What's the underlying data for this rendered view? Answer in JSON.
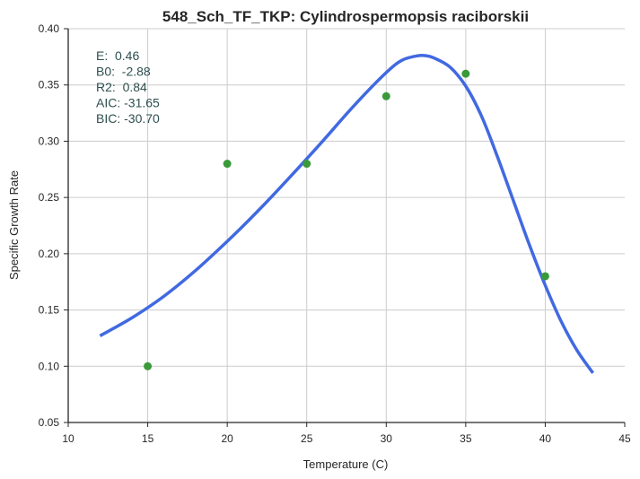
{
  "chart_data": {
    "type": "scatter",
    "title": "548_Sch_TF_TKP: Cylindrospermopsis raciborskii",
    "xlabel": "Temperature (C)",
    "ylabel": "Specific Growth Rate",
    "xlim": [
      10,
      45
    ],
    "ylim": [
      0.05,
      0.4
    ],
    "x_ticks": [
      "10",
      "15",
      "20",
      "25",
      "30",
      "35",
      "40",
      "45"
    ],
    "y_ticks": [
      "0.05",
      "0.10",
      "0.15",
      "0.20",
      "0.25",
      "0.30",
      "0.35",
      "0.40"
    ],
    "grid": true,
    "points": {
      "x": [
        15,
        20,
        25,
        30,
        35,
        40
      ],
      "y": [
        0.1,
        0.28,
        0.28,
        0.34,
        0.36,
        0.18
      ],
      "color": "#3a9a3a"
    },
    "fit_curve": {
      "x": [
        12,
        14,
        16,
        18,
        20,
        22,
        24,
        26,
        28,
        30,
        31,
        32,
        32.5,
        33,
        34,
        35,
        36,
        37,
        38,
        39,
        40,
        41,
        42,
        43
      ],
      "y": [
        0.127,
        0.143,
        0.162,
        0.185,
        0.211,
        0.239,
        0.269,
        0.3,
        0.332,
        0.361,
        0.372,
        0.376,
        0.376,
        0.374,
        0.366,
        0.349,
        0.322,
        0.286,
        0.247,
        0.208,
        0.172,
        0.14,
        0.114,
        0.094
      ],
      "color": "#4169e1"
    },
    "stats": [
      "E:  0.46",
      "B0:  -2.88",
      "R2:  0.84",
      "AIC: -31.65",
      "BIC: -30.70"
    ],
    "stats_color": "#2f4f4f"
  }
}
